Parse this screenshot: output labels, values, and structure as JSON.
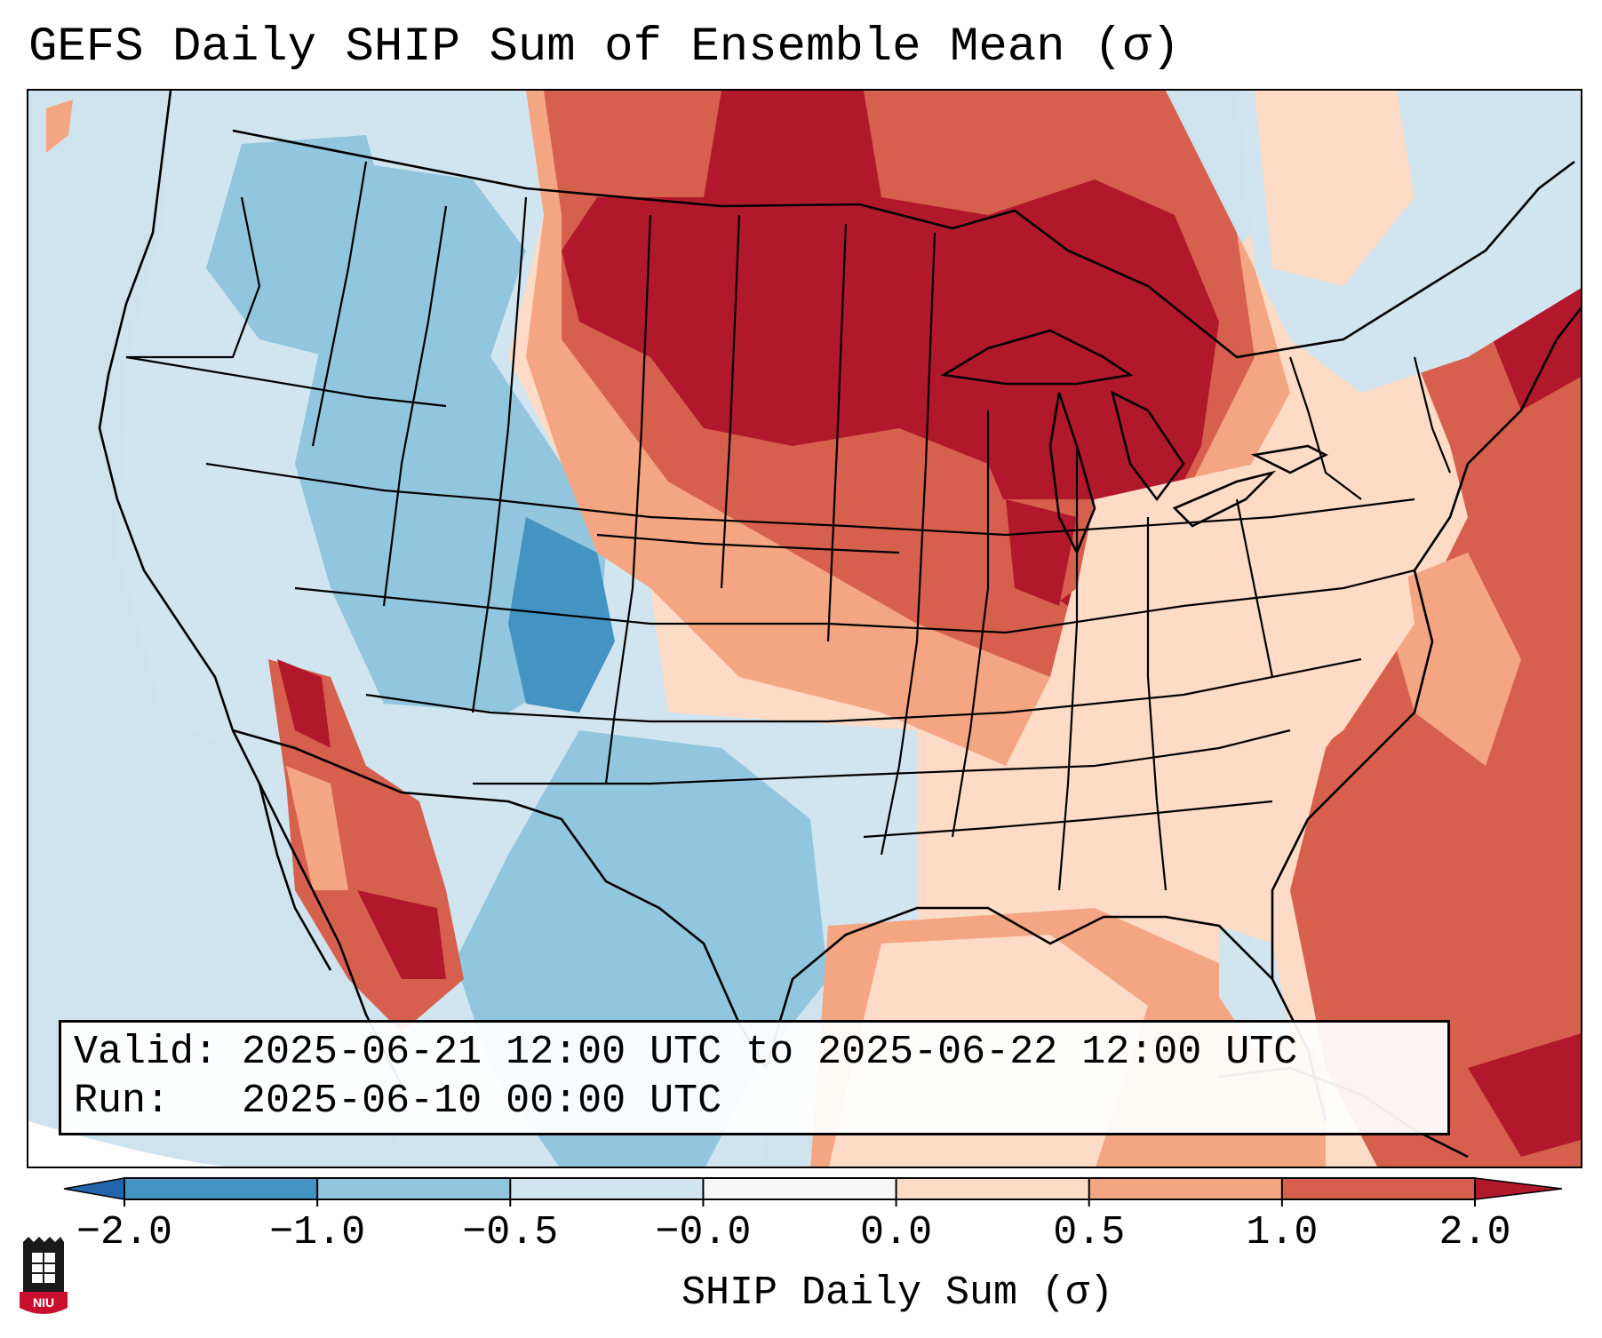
{
  "title": "GEFS Daily SHIP Sum of Ensemble Mean (σ)",
  "info": {
    "valid_label": "Valid:",
    "valid_value": "2025-06-21 12:00 UTC to 2025-06-22 12:00 UTC",
    "run_label": "Run:",
    "run_value": "2025-06-10 00:00 UTC"
  },
  "colorbar": {
    "title": "SHIP Daily Sum (σ)",
    "ticks": [
      "−2.0",
      "−1.0",
      "−0.5",
      "−0.0",
      "0.0",
      "0.5",
      "1.0",
      "2.0"
    ],
    "colors": [
      "#4393c3",
      "#92c5de",
      "#d1e5f0",
      "#f7f7f7",
      "#fddbc7",
      "#f4a582",
      "#d6604d",
      "#b2182b"
    ],
    "under_color": "#2166ac",
    "over_color": "#67001f"
  },
  "logo": {
    "text": "NIU",
    "color": "#c8102e"
  },
  "map": {
    "ocean_color": "#cfe3ef",
    "region": "Contiguous United States"
  }
}
